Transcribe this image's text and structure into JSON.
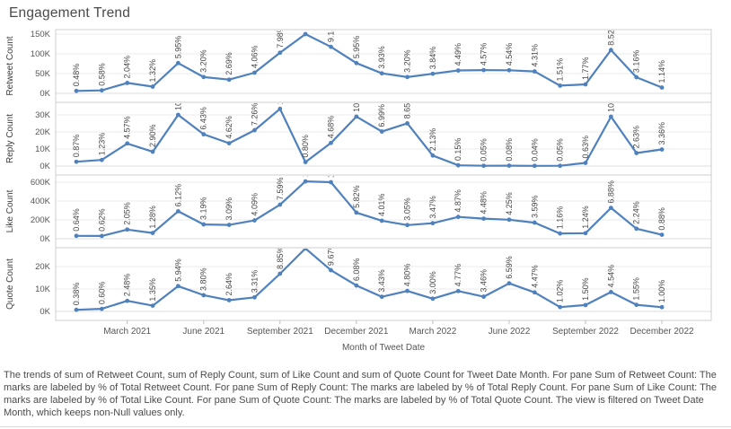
{
  "title": "Engagement Trend",
  "x_axis_title": "Month of Tweet Date",
  "caption": "The trends of sum of Retweet Count, sum of Reply Count, sum of Like Count and sum of Quote Count for Tweet Date Month.  For pane Sum of Retweet Count:  The marks are labeled by % of Total Retweet Count.  For pane Sum of Reply Count:  The marks are labeled by % of Total Reply Count.  For pane Sum of Like Count:  The marks are labeled by % of Total Like Count.  For pane Sum of Quote Count:  The marks are labeled by % of Total Quote Count. The view is filtered on Tweet Date Month, which keeps non-Null values only.",
  "colors": {
    "line": "#4f81bd",
    "label_text": "#474747",
    "axis_text": "#565656",
    "pane_title_text": "#3f3f3f",
    "border": "#cfcfcf",
    "grid": "#ebebeb"
  },
  "chart_data": {
    "type": "line",
    "title": "Engagement Trend",
    "xlabel": "Month of Tweet Date",
    "x_tick_labels": [
      "March 2021",
      "June 2021",
      "September 2021",
      "December 2021",
      "March 2022",
      "June 2022",
      "September 2022",
      "December 2022"
    ],
    "x_tick_indices": [
      2,
      5,
      8,
      11,
      14,
      17,
      20,
      23
    ],
    "months": [
      "January 2021",
      "February 2021",
      "March 2021",
      "April 2021",
      "May 2021",
      "June 2021",
      "July 2021",
      "August 2021",
      "September 2021",
      "October 2021",
      "November 2021",
      "December 2021",
      "January 2022",
      "February 2022",
      "March 2022",
      "April 2022",
      "May 2022",
      "June 2022",
      "July 2022",
      "August 2022",
      "September 2022",
      "October 2022",
      "November 2022",
      "December 2022"
    ],
    "label_format": "percent_of_pane_total",
    "grid": true,
    "legend": "none",
    "panes": [
      {
        "label": "Retweet Count",
        "y_ticks": [
          "0K",
          "50K",
          "100K",
          "150K"
        ],
        "values_pct": [
          0.48,
          0.58,
          2.04,
          1.32,
          5.95,
          3.2,
          2.69,
          4.06,
          7.98,
          11.64,
          9.14,
          5.95,
          3.93,
          3.2,
          3.84,
          4.49,
          4.57,
          4.54,
          4.31,
          1.51,
          1.77,
          8.52,
          3.16,
          1.14
        ]
      },
      {
        "label": "Reply Count",
        "y_ticks": [
          "0K",
          "10K",
          "20K",
          "30K"
        ],
        "values_pct": [
          0.87,
          1.23,
          4.57,
          2.9,
          10.37,
          6.43,
          4.62,
          7.26,
          11.58,
          0.8,
          4.68,
          10.02,
          6.99,
          8.65,
          2.13,
          0.15,
          0.05,
          0.08,
          0.04,
          0.05,
          0.63,
          10.0,
          2.63,
          3.36
        ]
      },
      {
        "label": "Like Count",
        "y_ticks": [
          "0K",
          "200K",
          "400K",
          "600K"
        ],
        "values_pct": [
          0.64,
          0.62,
          2.05,
          1.28,
          6.12,
          3.19,
          3.09,
          4.09,
          7.59,
          12.78,
          12.6,
          5.82,
          4.01,
          3.05,
          3.47,
          4.87,
          4.48,
          4.25,
          3.59,
          1.16,
          1.24,
          6.88,
          2.24,
          0.88
        ]
      },
      {
        "label": "Quote Count",
        "y_ticks": [
          "0K",
          "10K",
          "20K"
        ],
        "values_pct": [
          0.38,
          0.6,
          2.48,
          1.35,
          5.94,
          3.8,
          2.64,
          3.31,
          8.85,
          14.77,
          9.67,
          6.08,
          3.43,
          4.8,
          3.0,
          4.77,
          3.46,
          6.59,
          4.47,
          1.02,
          1.5,
          4.54,
          1.55,
          1.0
        ]
      }
    ]
  }
}
